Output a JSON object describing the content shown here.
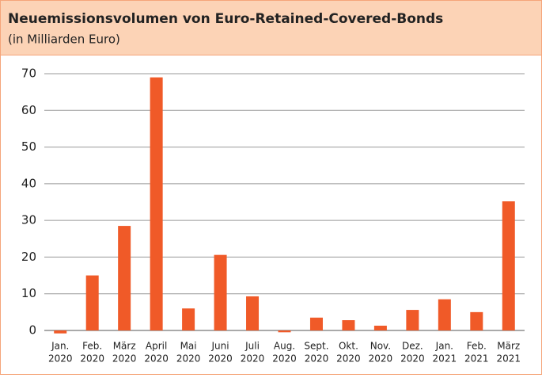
{
  "chart_data": {
    "type": "bar",
    "title": "Neuemissionsvolumen von Euro-Retained-Covered-Bonds",
    "subtitle": "(in Milliarden Euro)",
    "categories": [
      [
        "Jan.",
        "2020"
      ],
      [
        "Feb.",
        "2020"
      ],
      [
        "März",
        "2020"
      ],
      [
        "April",
        "2020"
      ],
      [
        "Mai",
        "2020"
      ],
      [
        "Juni",
        "2020"
      ],
      [
        "Juli",
        "2020"
      ],
      [
        "Aug.",
        "2020"
      ],
      [
        "Sept.",
        "2020"
      ],
      [
        "Okt.",
        "2020"
      ],
      [
        "Nov.",
        "2020"
      ],
      [
        "Dez.",
        "2020"
      ],
      [
        "Jan.",
        "2021"
      ],
      [
        "Feb.",
        "2021"
      ],
      [
        "März",
        "2021"
      ]
    ],
    "values": [
      -0.8,
      15,
      28.5,
      69,
      6,
      20.6,
      9.3,
      -0.5,
      3.5,
      2.8,
      1.3,
      5.6,
      8.5,
      5,
      35.2
    ],
    "color": "#f05a28",
    "ylim": [
      -1,
      70
    ],
    "yticks": [
      0,
      10,
      20,
      30,
      40,
      50,
      60,
      70
    ],
    "grid": true
  }
}
